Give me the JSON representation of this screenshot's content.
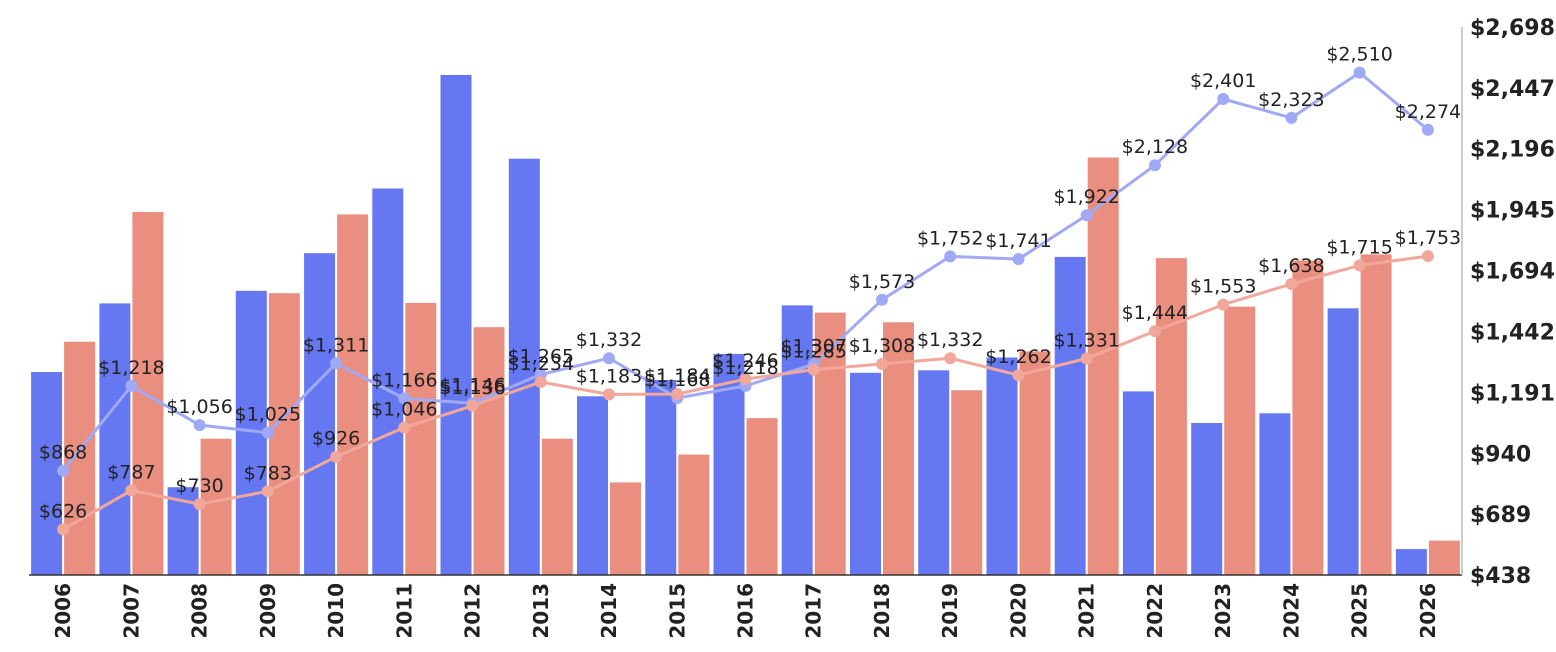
{
  "chart_data": {
    "type": "bar",
    "categories": [
      "2006",
      "2007",
      "2008",
      "2009",
      "2010",
      "2011",
      "2012",
      "2013",
      "2014",
      "2015",
      "2016",
      "2017",
      "2018",
      "2019",
      "2020",
      "2021",
      "2022",
      "2023",
      "2024",
      "2025",
      "2026"
    ],
    "ylim": [
      438,
      2698
    ],
    "yticks": [
      "$438",
      "$689",
      "$940",
      "$1,191",
      "$1,442",
      "$1,694",
      "$1,945",
      "$2,196",
      "$2,447",
      "$2,698"
    ],
    "ytick_values": [
      438,
      689,
      940,
      1191,
      1442,
      1694,
      1945,
      2196,
      2447,
      2698
    ],
    "y_axis_position": "right",
    "grid": false,
    "legend": "none",
    "bar_series": [
      {
        "color": "#6677f2",
        "values": [
          1275,
          1558,
          800,
          1610,
          1765,
          2032,
          2500,
          2155,
          1175,
          1242,
          1350,
          1550,
          1272,
          1282,
          1335,
          1750,
          1195,
          1065,
          1105,
          1538,
          545
        ]
      },
      {
        "color": "#ea8f80",
        "values": [
          1400,
          1935,
          1000,
          1600,
          1925,
          1560,
          1460,
          1000,
          820,
          935,
          1085,
          1520,
          1480,
          1200,
          1360,
          2160,
          1745,
          1545,
          1735,
          1760,
          580
        ]
      }
    ],
    "line_series": [
      {
        "color": "#9fa9f5",
        "values": [
          868,
          1218,
          1056,
          1025,
          1311,
          1166,
          1146,
          1265,
          1332,
          1168,
          1218,
          1307,
          1573,
          1752,
          1741,
          1922,
          2128,
          2401,
          2323,
          2510,
          2274
        ],
        "labels": [
          "$868",
          "$1,218",
          "$1,056",
          "$1,025",
          "$1,311",
          "$1,166",
          "$1,146",
          "$1,265",
          "$1,332",
          "$1,168",
          "$1,218",
          "$1,307",
          "$1,573",
          "$1,752",
          "$1,741",
          "$1,922",
          "$2,128",
          "$2,401",
          "$2,323",
          "$2,510",
          "$2,274"
        ]
      },
      {
        "color": "#f2a79b",
        "values": [
          626,
          787,
          730,
          783,
          926,
          1046,
          1136,
          1234,
          1183,
          1184,
          1246,
          1285,
          1308,
          1332,
          1262,
          1331,
          1444,
          1553,
          1638,
          1715,
          1753
        ],
        "labels": [
          "$626",
          "$787",
          "$730",
          "$783",
          "$926",
          "$1,046",
          "$1,136",
          "$1,234",
          "$1,183",
          "$1,184",
          "$1,246",
          "$1,285",
          "$1,308",
          "$1,332",
          "$1,262",
          "$1,331",
          "$1,444",
          "$1,553",
          "$1,638",
          "$1,715",
          "$1,753"
        ]
      }
    ]
  }
}
